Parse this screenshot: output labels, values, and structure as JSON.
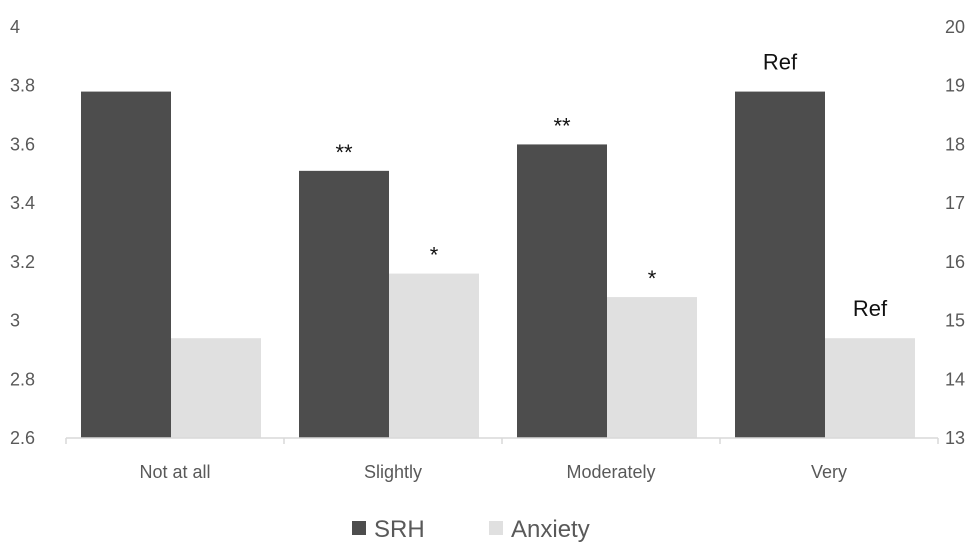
{
  "chart_data": {
    "type": "bar",
    "title": "",
    "xlabel": "",
    "ylabel": "",
    "categories": [
      "Not at all",
      "Slightly",
      "Moderately",
      "Very"
    ],
    "series": [
      {
        "name": "SRH",
        "axis": "left",
        "color": "#4d4d4d",
        "values": [
          3.78,
          3.51,
          3.6,
          3.78
        ],
        "annotations": [
          "",
          "**",
          "**",
          "Ref"
        ]
      },
      {
        "name": "Anxiety",
        "axis": "right",
        "color": "#e0e0e0",
        "values": [
          14.7,
          15.8,
          15.4,
          14.7
        ],
        "annotations": [
          "",
          "*",
          "*",
          "Ref"
        ]
      }
    ],
    "ylim_left": [
      2.6,
      4
    ],
    "yticks_left": [
      "2.6",
      "2.8",
      "3",
      "3.2",
      "3.4",
      "3.6",
      "3.8",
      "4"
    ],
    "ylim_right": [
      13,
      20
    ],
    "yticks_right": [
      "13",
      "14",
      "15",
      "16",
      "17",
      "18",
      "19",
      "20"
    ],
    "grid": false,
    "legend_position": "bottom"
  }
}
